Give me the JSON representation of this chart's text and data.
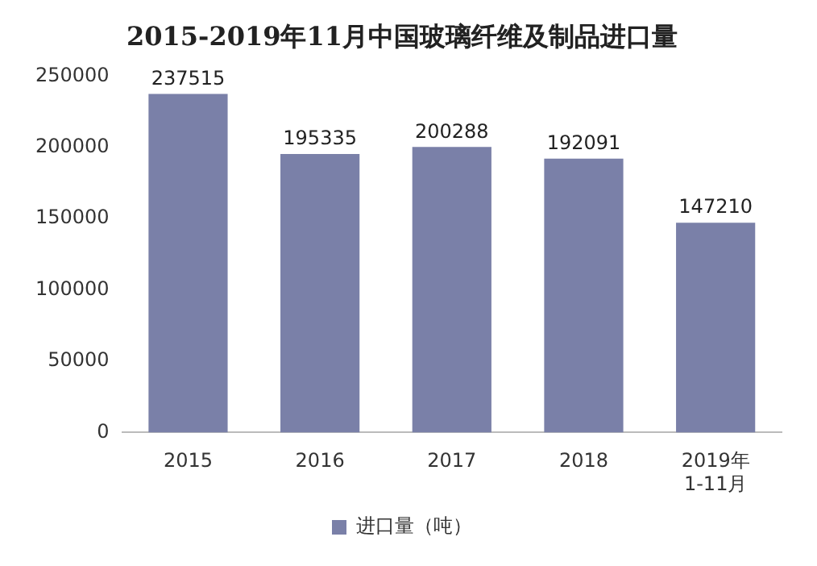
{
  "chart_data": {
    "type": "bar",
    "title": "2015-2019年11月中国玻璃纤维及制品进口量",
    "categories": [
      "2015",
      "2016",
      "2017",
      "2018",
      "2019年\n1-11月"
    ],
    "series": [
      {
        "name": "进口量（吨）",
        "color": "#7a80a8",
        "values": [
          237515,
          195335,
          200288,
          192091,
          147210
        ]
      }
    ],
    "ylim": [
      0,
      250000
    ],
    "yticks": [
      0,
      50000,
      100000,
      150000,
      200000,
      250000
    ],
    "grid": false,
    "legend": "bottom",
    "data_labels": true
  }
}
